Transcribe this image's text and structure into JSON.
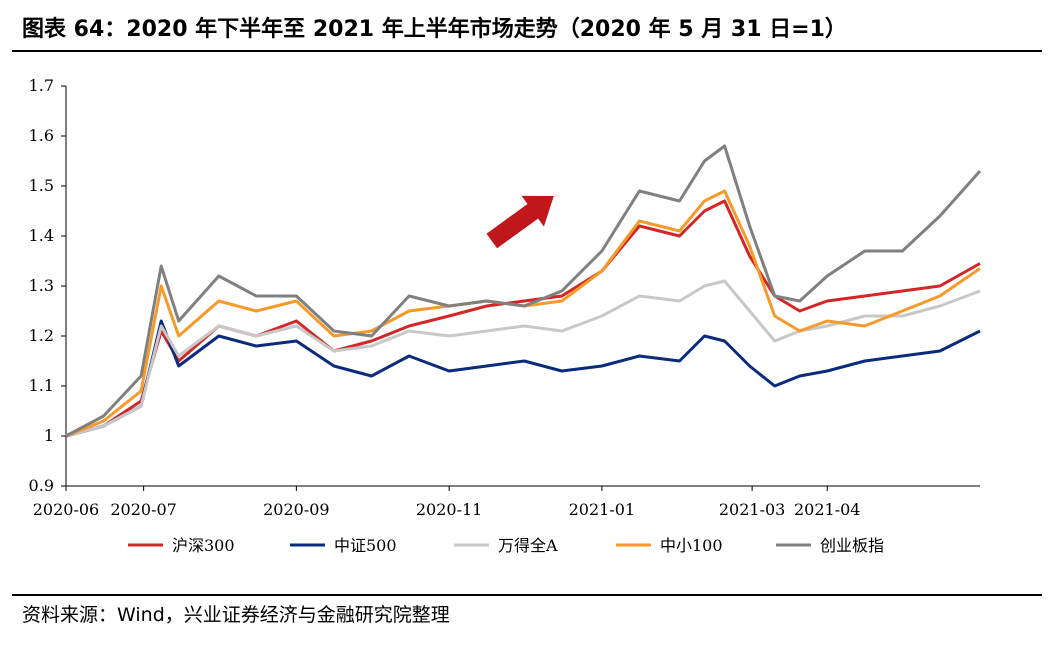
{
  "header": {
    "title": "图表 64：2020 年下半年至 2021 年上半年市场走势（2020 年 5 月 31 日=1）"
  },
  "footer": {
    "source": "资料来源：Wind，兴业证券经济与金融研究院整理"
  },
  "colors": {
    "hs300": "#d32626",
    "zz500": "#0b2b7d",
    "wdqa": "#c8c8c8",
    "zx100": "#f89a2a",
    "cyb": "#808080",
    "arrow": "#c0171c"
  },
  "chart_data": {
    "type": "line",
    "title": "",
    "xlabel": "",
    "ylabel": "",
    "ylim": [
      0.9,
      1.7
    ],
    "y_ticks": [
      "0.9",
      "1",
      "1.1",
      "1.2",
      "1.3",
      "1.4",
      "1.5",
      "1.6",
      "1.7"
    ],
    "x_range": [
      "2020-05-31",
      "2021-05-31"
    ],
    "x_ticks": [
      {
        "label": "2020-06",
        "date": "2020-05-31"
      },
      {
        "label": "2020-07",
        "date": "2020-07-01"
      },
      {
        "label": "2020-09",
        "date": "2020-08-31"
      },
      {
        "label": "2020-11",
        "date": "2020-10-31"
      },
      {
        "label": "2021-01",
        "date": "2020-12-31"
      },
      {
        "label": "2021-03",
        "date": "2021-03-01"
      },
      {
        "label": "2021-04",
        "date": "2021-03-31"
      }
    ],
    "legend_position": "bottom",
    "grid": false,
    "annotation": "upward red arrow",
    "series": [
      {
        "name": "沪深300",
        "color_key": "hs300",
        "x": [
          "2020-05-31",
          "2020-06-15",
          "2020-06-30",
          "2020-07-08",
          "2020-07-15",
          "2020-07-31",
          "2020-08-15",
          "2020-08-31",
          "2020-09-15",
          "2020-09-30",
          "2020-10-15",
          "2020-10-31",
          "2020-11-15",
          "2020-11-30",
          "2020-12-15",
          "2020-12-31",
          "2021-01-15",
          "2021-01-31",
          "2021-02-10",
          "2021-02-18",
          "2021-02-28",
          "2021-03-10",
          "2021-03-20",
          "2021-03-31",
          "2021-04-15",
          "2021-04-30",
          "2021-05-15",
          "2021-05-31"
        ],
        "values": [
          1.0,
          1.02,
          1.07,
          1.21,
          1.15,
          1.22,
          1.2,
          1.23,
          1.17,
          1.19,
          1.22,
          1.24,
          1.26,
          1.27,
          1.28,
          1.33,
          1.42,
          1.4,
          1.45,
          1.47,
          1.36,
          1.28,
          1.25,
          1.27,
          1.28,
          1.29,
          1.3,
          1.345
        ]
      },
      {
        "name": "中证500",
        "color_key": "zz500",
        "x": [
          "2020-05-31",
          "2020-06-15",
          "2020-06-30",
          "2020-07-08",
          "2020-07-15",
          "2020-07-31",
          "2020-08-15",
          "2020-08-31",
          "2020-09-15",
          "2020-09-30",
          "2020-10-15",
          "2020-10-31",
          "2020-11-15",
          "2020-11-30",
          "2020-12-15",
          "2020-12-31",
          "2021-01-15",
          "2021-01-31",
          "2021-02-10",
          "2021-02-18",
          "2021-02-28",
          "2021-03-10",
          "2021-03-20",
          "2021-03-31",
          "2021-04-15",
          "2021-04-30",
          "2021-05-15",
          "2021-05-31"
        ],
        "values": [
          1.0,
          1.02,
          1.06,
          1.23,
          1.14,
          1.2,
          1.18,
          1.19,
          1.14,
          1.12,
          1.16,
          1.13,
          1.14,
          1.15,
          1.13,
          1.14,
          1.16,
          1.15,
          1.2,
          1.19,
          1.14,
          1.1,
          1.12,
          1.13,
          1.15,
          1.16,
          1.17,
          1.21
        ]
      },
      {
        "name": "万得全A",
        "color_key": "wdqa",
        "x": [
          "2020-05-31",
          "2020-06-15",
          "2020-06-30",
          "2020-07-08",
          "2020-07-15",
          "2020-07-31",
          "2020-08-15",
          "2020-08-31",
          "2020-09-15",
          "2020-09-30",
          "2020-10-15",
          "2020-10-31",
          "2020-11-15",
          "2020-11-30",
          "2020-12-15",
          "2020-12-31",
          "2021-01-15",
          "2021-01-31",
          "2021-02-10",
          "2021-02-18",
          "2021-02-28",
          "2021-03-10",
          "2021-03-20",
          "2021-03-31",
          "2021-04-15",
          "2021-04-30",
          "2021-05-15",
          "2021-05-31"
        ],
        "values": [
          1.0,
          1.02,
          1.06,
          1.22,
          1.16,
          1.22,
          1.2,
          1.22,
          1.17,
          1.18,
          1.21,
          1.2,
          1.21,
          1.22,
          1.21,
          1.24,
          1.28,
          1.27,
          1.3,
          1.31,
          1.25,
          1.19,
          1.21,
          1.22,
          1.24,
          1.24,
          1.26,
          1.29
        ]
      },
      {
        "name": "中小100",
        "color_key": "zx100",
        "x": [
          "2020-05-31",
          "2020-06-15",
          "2020-06-30",
          "2020-07-08",
          "2020-07-15",
          "2020-07-31",
          "2020-08-15",
          "2020-08-31",
          "2020-09-15",
          "2020-09-30",
          "2020-10-15",
          "2020-10-31",
          "2020-11-15",
          "2020-11-30",
          "2020-12-15",
          "2020-12-31",
          "2021-01-15",
          "2021-01-31",
          "2021-02-10",
          "2021-02-18",
          "2021-02-28",
          "2021-03-10",
          "2021-03-20",
          "2021-03-31",
          "2021-04-15",
          "2021-04-30",
          "2021-05-15",
          "2021-05-31"
        ],
        "values": [
          1.0,
          1.03,
          1.09,
          1.3,
          1.2,
          1.27,
          1.25,
          1.27,
          1.2,
          1.21,
          1.25,
          1.26,
          1.27,
          1.26,
          1.27,
          1.33,
          1.43,
          1.41,
          1.47,
          1.49,
          1.38,
          1.24,
          1.21,
          1.23,
          1.22,
          1.25,
          1.28,
          1.335
        ]
      },
      {
        "name": "创业板指",
        "color_key": "cyb",
        "x": [
          "2020-05-31",
          "2020-06-15",
          "2020-06-30",
          "2020-07-08",
          "2020-07-15",
          "2020-07-31",
          "2020-08-15",
          "2020-08-31",
          "2020-09-15",
          "2020-09-30",
          "2020-10-15",
          "2020-10-31",
          "2020-11-15",
          "2020-11-30",
          "2020-12-15",
          "2020-12-31",
          "2021-01-15",
          "2021-01-31",
          "2021-02-10",
          "2021-02-18",
          "2021-02-28",
          "2021-03-10",
          "2021-03-20",
          "2021-03-31",
          "2021-04-15",
          "2021-04-30",
          "2021-05-15",
          "2021-05-31"
        ],
        "values": [
          1.0,
          1.04,
          1.12,
          1.34,
          1.23,
          1.32,
          1.28,
          1.28,
          1.21,
          1.2,
          1.28,
          1.26,
          1.27,
          1.26,
          1.29,
          1.37,
          1.49,
          1.47,
          1.55,
          1.58,
          1.42,
          1.28,
          1.27,
          1.32,
          1.37,
          1.37,
          1.44,
          1.53
        ]
      }
    ]
  }
}
